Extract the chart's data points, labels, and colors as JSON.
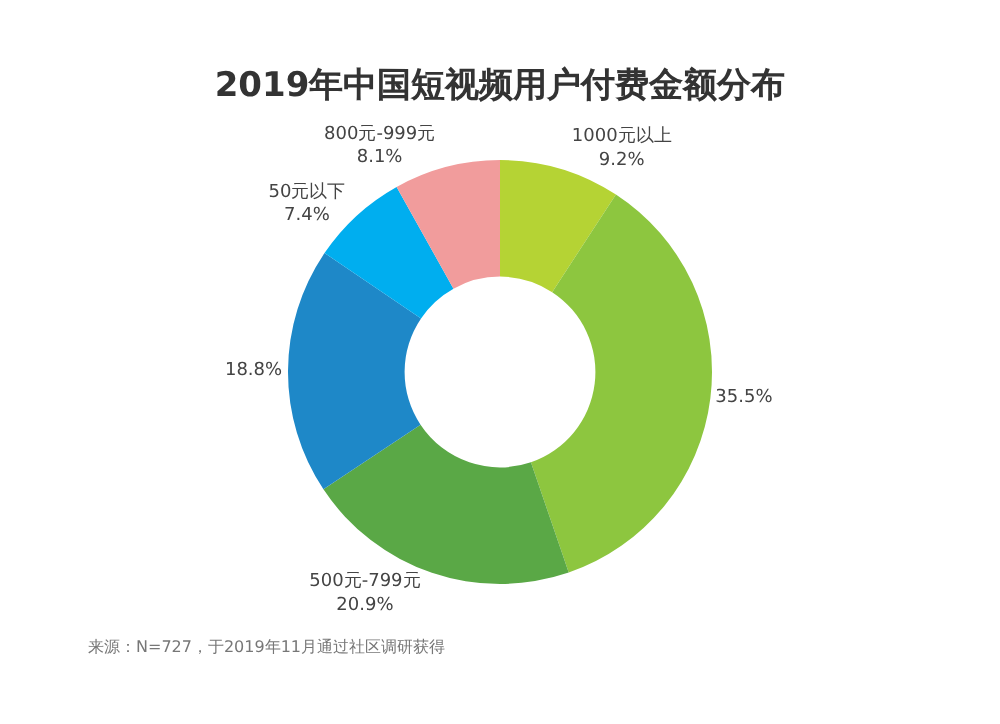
{
  "chart_data": {
    "type": "donut",
    "title": "2019年中国短视频用户付费金额分布",
    "categories": [
      "1000元以上",
      null,
      "500元-799元",
      null,
      "50元以下",
      "800元-999元"
    ],
    "values": [
      9.2,
      35.5,
      20.9,
      18.8,
      7.4,
      8.1
    ],
    "value_labels": [
      "9.2%",
      "35.5%",
      "20.9%",
      "18.8%",
      "7.4%",
      "8.1%"
    ],
    "colors": [
      "#b5d334",
      "#8dc63f",
      "#5aa846",
      "#1e88c8",
      "#00aeef",
      "#f19c9c"
    ],
    "legend": false,
    "annotations": [
      "来源：N=727，于2019年11月通过社区调研获得"
    ]
  }
}
